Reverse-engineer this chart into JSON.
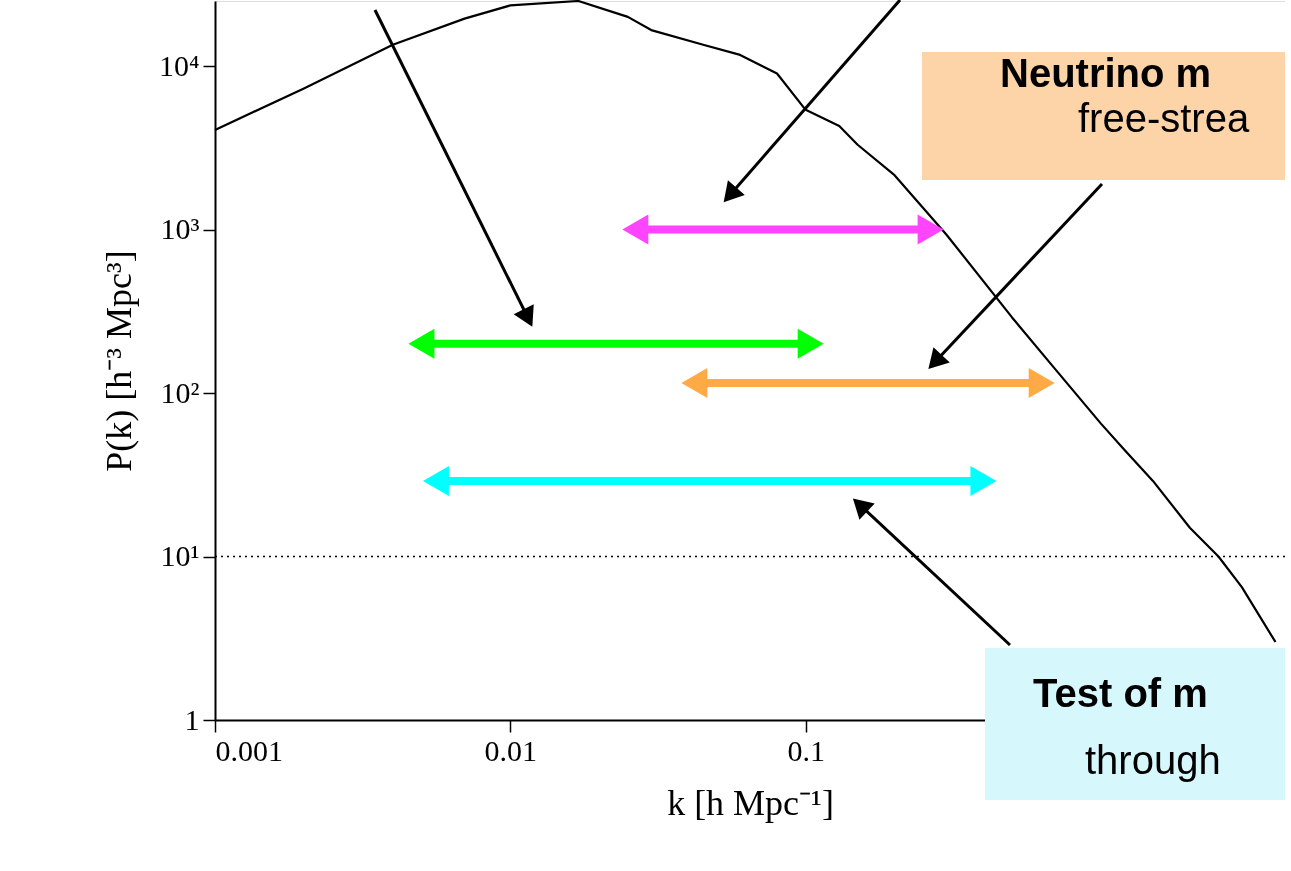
{
  "chart_data": {
    "type": "line",
    "xlabel": "k [h Mpc⁻¹]",
    "ylabel": "P(k) [h⁻³ Mpc³]",
    "xlim": [
      0.001,
      4.2
    ],
    "ylim": [
      1,
      25000
    ],
    "log": "xy",
    "grid": false,
    "xticks": [
      0.001,
      0.01,
      0.1
    ],
    "yticks": [
      1,
      {
        "value": 10,
        "label": "10¹"
      },
      {
        "value": 100,
        "label": "10²"
      },
      {
        "value": 1000,
        "label": "10³"
      },
      {
        "value": 10000,
        "label": "10⁴"
      }
    ],
    "ref_lines": [
      {
        "axis": "y",
        "value": 10,
        "line_style": "dotted",
        "color": "#000000"
      }
    ],
    "series": [
      {
        "color": "#000000",
        "x": [
          0.001,
          0.002,
          0.004,
          0.007,
          0.01,
          0.017,
          0.025,
          0.03,
          0.045,
          0.06,
          0.08,
          0.1,
          0.13,
          0.15,
          0.2,
          0.3,
          0.5,
          0.7,
          1,
          1.2,
          1.5,
          2,
          2.5,
          3,
          3.9
        ],
        "values": [
          4070,
          7300,
          13500,
          19500,
          23500,
          25000,
          20000,
          16600,
          13500,
          11700,
          9000,
          5400,
          4300,
          3300,
          2150,
          930,
          290,
          140,
          65,
          45,
          29,
          15,
          10,
          6.5,
          3
        ]
      },
      {
        "color": "#ff44ff",
        "marker": "triangle",
        "x": [
          0.0265,
          0.265
        ],
        "values": [
          1000,
          1000
        ]
      },
      {
        "color": "#00ff00",
        "marker": "triangle",
        "x": [
          0.005,
          0.104
        ],
        "values": [
          200,
          200
        ]
      },
      {
        "color": "#ffaa44",
        "marker": "triangle",
        "x": [
          0.042,
          0.63
        ],
        "values": [
          115,
          115
        ]
      },
      {
        "color": "#00ffff",
        "marker": "triangle",
        "x": [
          0.0056,
          0.4
        ],
        "values": [
          29,
          29
        ]
      }
    ],
    "annotations": [
      "Neutrino m",
      "free-strea",
      "Test of m",
      "through"
    ]
  }
}
